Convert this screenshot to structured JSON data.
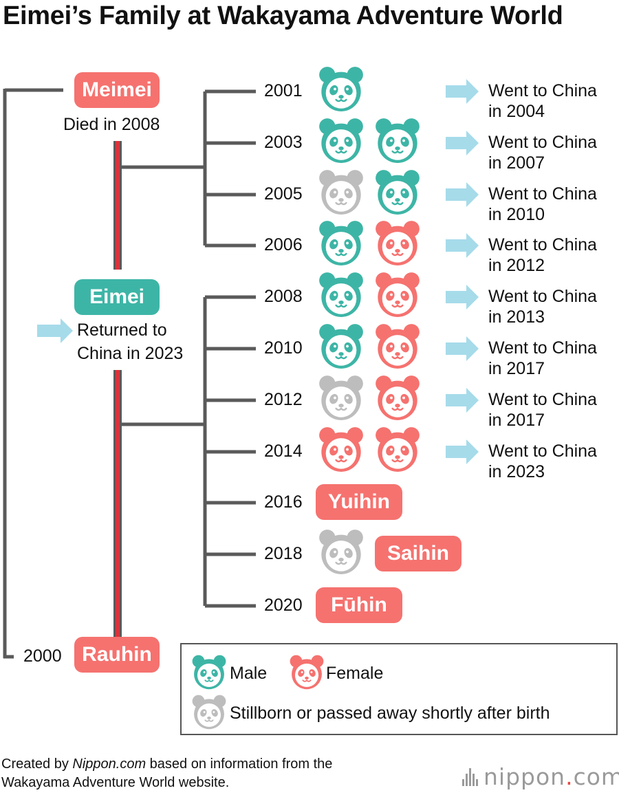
{
  "title": "Eimei’s Family at Wakayama Adventure World",
  "colors": {
    "male": "#3db5a6",
    "female": "#f5726f",
    "stillborn": "#bdbdbd",
    "arrow": "#a6dbea",
    "line": "#5a5a5a",
    "eimei_line": "#d8343c"
  },
  "parents": {
    "meimei": {
      "name": "Meimei",
      "note": "Died in 2008"
    },
    "eimei": {
      "name": "Eimei",
      "note_line1": "Returned to",
      "note_line2": "China in 2023"
    },
    "rauhin": {
      "name": "Rauhin",
      "year": "2000"
    }
  },
  "litters": [
    {
      "year": "2001",
      "cubs": [
        "male"
      ],
      "dest1": "Went to China",
      "dest2": "in 2004"
    },
    {
      "year": "2003",
      "cubs": [
        "male",
        "male"
      ],
      "dest1": "Went to China",
      "dest2": "in 2007"
    },
    {
      "year": "2005",
      "cubs": [
        "stillborn",
        "male"
      ],
      "dest1": "Went to China",
      "dest2": "in 2010"
    },
    {
      "year": "2006",
      "cubs": [
        "male",
        "female"
      ],
      "dest1": "Went to China",
      "dest2": "in 2012"
    },
    {
      "year": "2008",
      "cubs": [
        "male",
        "female"
      ],
      "dest1": "Went to China",
      "dest2": "in 2013"
    },
    {
      "year": "2010",
      "cubs": [
        "male",
        "female"
      ],
      "dest1": "Went to China",
      "dest2": "in 2017"
    },
    {
      "year": "2012",
      "cubs": [
        "stillborn",
        "female"
      ],
      "dest1": "Went to China",
      "dest2": "in 2017"
    },
    {
      "year": "2014",
      "cubs": [
        "female",
        "female"
      ],
      "dest1": "Went to China",
      "dest2": "in 2023"
    },
    {
      "year": "2016",
      "name": "Yuihin"
    },
    {
      "year": "2018",
      "cubs": [
        "stillborn"
      ],
      "name": "Saihin"
    },
    {
      "year": "2020",
      "name": "Fūhin"
    }
  ],
  "legend": {
    "male": "Male",
    "female": "Female",
    "stillborn": "Stillborn or passed away shortly after birth"
  },
  "credit": {
    "prefix": "Created by ",
    "source": "Nippon.com",
    "suffix": " based on information from the",
    "line2": "Wakayama Adventure World website."
  },
  "logo": {
    "main": "nippon",
    "dot": ".",
    "tld": "com"
  }
}
